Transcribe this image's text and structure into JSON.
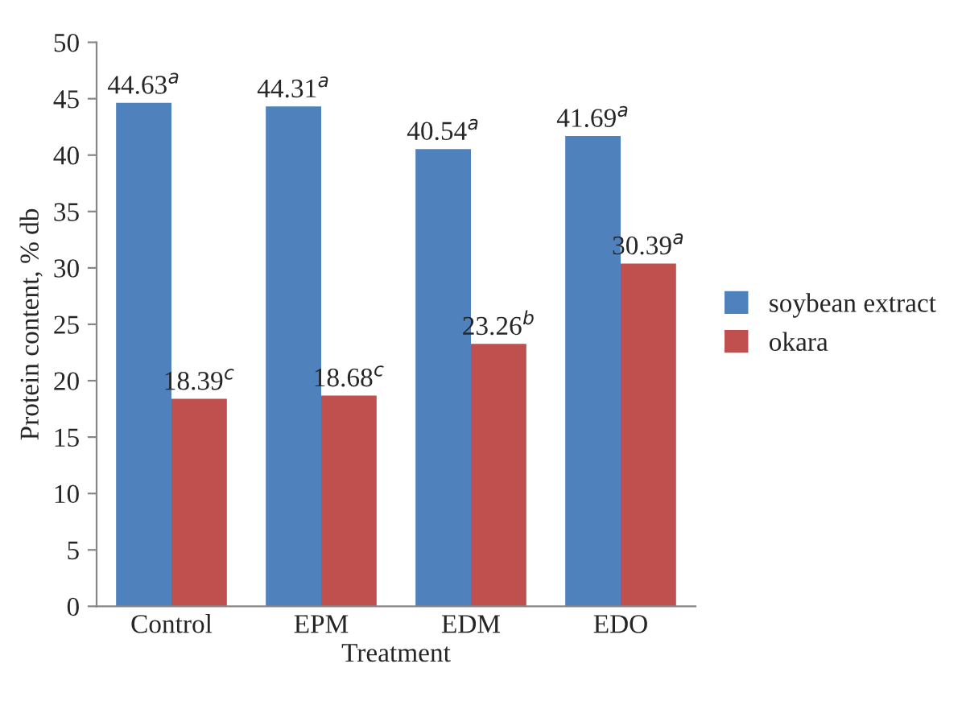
{
  "chart_data": {
    "type": "bar",
    "xlabel": "Treatment",
    "ylabel": "Protein content, % db",
    "categories": [
      "Control",
      "EPM",
      "EDM",
      "EDO"
    ],
    "series": [
      {
        "name": "soybean extract",
        "color": "#4f81bd",
        "values": [
          44.63,
          44.31,
          40.54,
          41.69
        ],
        "value_labels": [
          "44.63$^{a}$",
          "44.31$^{a}$",
          "40.54$^{a}$",
          "41.69$^{a}$"
        ]
      },
      {
        "name": "okara",
        "color": "#c0504d",
        "values": [
          18.39,
          18.68,
          23.26,
          30.39
        ],
        "value_labels": [
          "18.39$^{c}$",
          "18.68$^{c}$",
          "23.26$^{b}$",
          "30.39$^{a}$"
        ]
      }
    ],
    "ylim": [
      0,
      50
    ],
    "yticks": [
      0,
      5,
      10,
      15,
      20,
      25,
      30,
      35,
      40,
      45,
      50
    ],
    "grid": false,
    "legend": "right"
  }
}
